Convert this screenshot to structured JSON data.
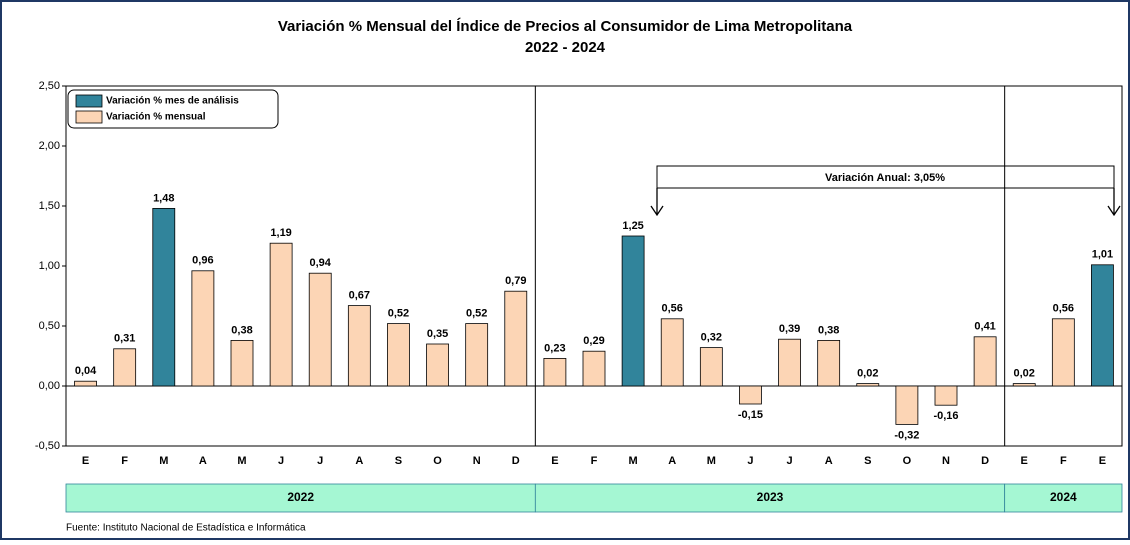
{
  "chart_data": {
    "type": "bar",
    "title": "Variación % Mensual del Índice de Precios al Consumidor de Lima Metropolitana",
    "subtitle": "2022 - 2024",
    "ylim": [
      -0.5,
      2.5
    ],
    "yticks": [
      {
        "value": -0.5,
        "label": "-0,50"
      },
      {
        "value": 0,
        "label": "0,00"
      },
      {
        "value": 0.5,
        "label": "0,50"
      },
      {
        "value": 1,
        "label": "1,00"
      },
      {
        "value": 1.5,
        "label": "1,50"
      },
      {
        "value": 2,
        "label": "2,00"
      },
      {
        "value": 2.5,
        "label": "2,50"
      }
    ],
    "legend": [
      {
        "name": "Variación % mes de análisis",
        "color": "#31849b"
      },
      {
        "name": "Variación % mensual",
        "color": "#fcd5b5"
      }
    ],
    "groups": [
      {
        "label": "2022",
        "categories": [
          "E",
          "F",
          "M",
          "A",
          "M",
          "J",
          "J",
          "A",
          "S",
          "O",
          "N",
          "D"
        ],
        "values": [
          0.04,
          0.31,
          1.48,
          0.96,
          0.38,
          1.19,
          0.94,
          0.67,
          0.52,
          0.35,
          0.52,
          0.79
        ],
        "value_labels": [
          "0,04",
          "0,31",
          "1,48",
          "0,96",
          "0,38",
          "1,19",
          "0,94",
          "0,67",
          "0,52",
          "0,35",
          "0,52",
          "0,79"
        ],
        "colors": [
          "#fcd5b5",
          "#fcd5b5",
          "#31849b",
          "#fcd5b5",
          "#fcd5b5",
          "#fcd5b5",
          "#fcd5b5",
          "#fcd5b5",
          "#fcd5b5",
          "#fcd5b5",
          "#fcd5b5",
          "#fcd5b5"
        ]
      },
      {
        "label": "2023",
        "categories": [
          "E",
          "F",
          "M",
          "A",
          "M",
          "J",
          "J",
          "A",
          "S",
          "O",
          "N",
          "D"
        ],
        "values": [
          0.23,
          0.29,
          1.25,
          0.56,
          0.32,
          -0.15,
          0.39,
          0.38,
          0.02,
          -0.32,
          -0.16,
          0.41
        ],
        "value_labels": [
          "0,23",
          "0,29",
          "1,25",
          "0,56",
          "0,32",
          "-0,15",
          "0,39",
          "0,38",
          "0,02",
          "-0,32",
          "-0,16",
          "0,41"
        ],
        "colors": [
          "#fcd5b5",
          "#fcd5b5",
          "#31849b",
          "#fcd5b5",
          "#fcd5b5",
          "#fcd5b5",
          "#fcd5b5",
          "#fcd5b5",
          "#fcd5b5",
          "#fcd5b5",
          "#fcd5b5",
          "#fcd5b5"
        ]
      },
      {
        "label": "2024",
        "categories": [
          "E",
          "F",
          "E"
        ],
        "values": [
          0.02,
          0.56,
          1.01
        ],
        "value_labels": [
          "0,02",
          "0,56",
          "1,01"
        ],
        "colors": [
          "#fcd5b5",
          "#fcd5b5",
          "#31849b"
        ]
      }
    ],
    "annotation": "Variación Anual: 3,05%",
    "source": "Fuente: Instituto  Nacional de Estadística  e Informática"
  }
}
